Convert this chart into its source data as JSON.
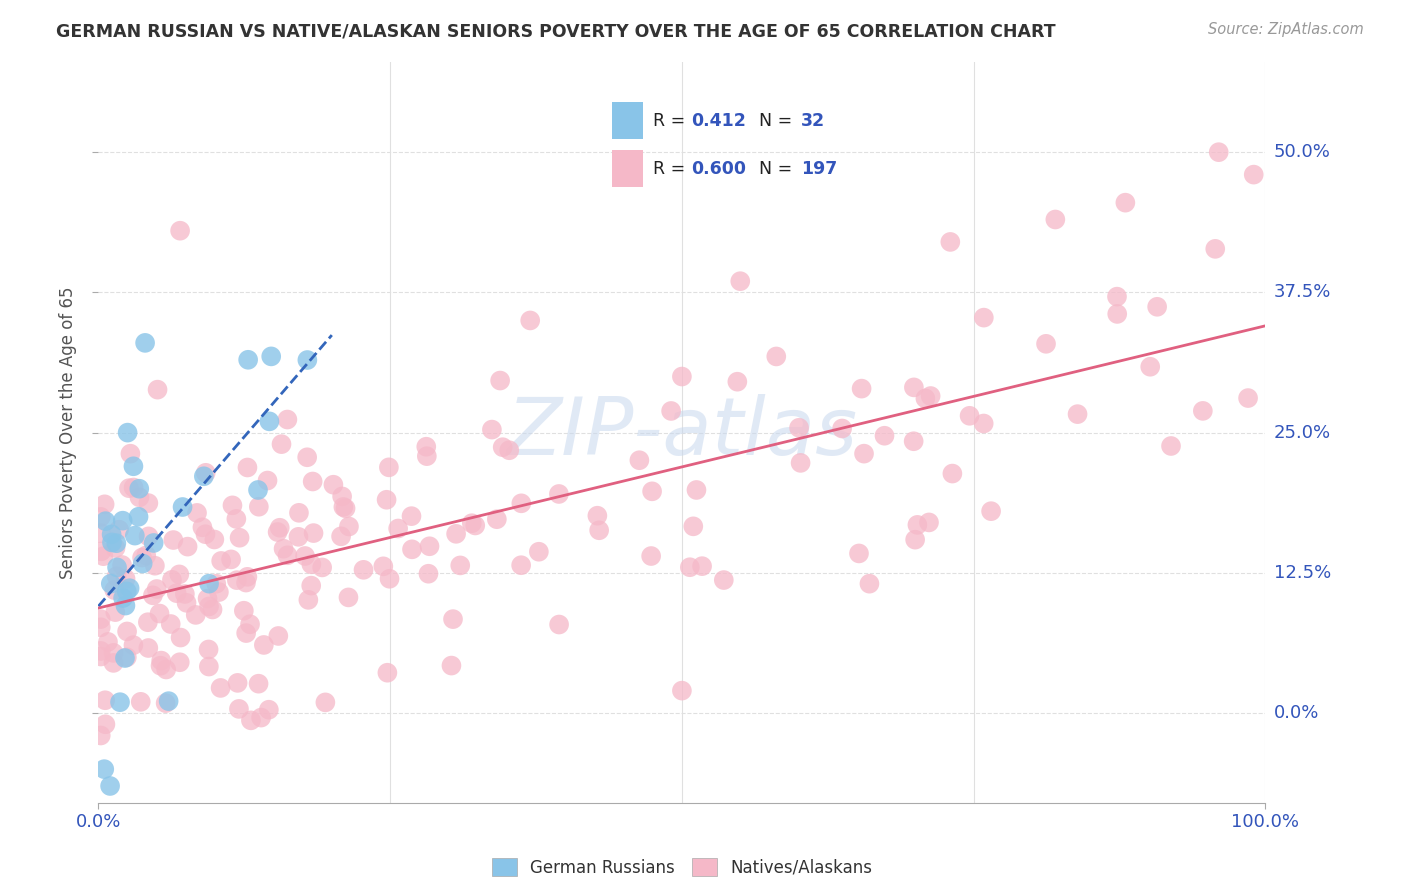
{
  "title": "GERMAN RUSSIAN VS NATIVE/ALASKAN SENIORS POVERTY OVER THE AGE OF 65 CORRELATION CHART",
  "source": "Source: ZipAtlas.com",
  "ylabel": "Seniors Poverty Over the Age of 65",
  "xlim": [
    0,
    1.0
  ],
  "ylim": [
    -0.08,
    0.58
  ],
  "yticks": [
    0.0,
    0.125,
    0.25,
    0.375,
    0.5
  ],
  "ytick_labels": [
    "0.0%",
    "12.5%",
    "25.0%",
    "37.5%",
    "50.0%"
  ],
  "watermark": "ZIPatlas",
  "legend_R1": "0.412",
  "legend_N1": "32",
  "legend_R2": "0.600",
  "legend_N2": "197",
  "legend_label1": "German Russians",
  "legend_label2": "Natives/Alaskans",
  "color_blue": "#89c4e8",
  "color_pink": "#f5b8c8",
  "trend_blue": "#3366bb",
  "trend_pink": "#e06080",
  "background": "#ffffff",
  "grid_color": "#e0e0e0",
  "title_color": "#333333",
  "source_color": "#999999",
  "tick_label_color": "#3355bb"
}
